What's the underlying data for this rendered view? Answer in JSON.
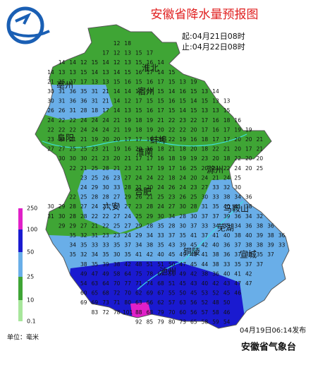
{
  "header": {
    "title": "安徽省降水量预报图",
    "start": "起:04月21日08时",
    "end": "止:04月22日08时"
  },
  "cities": [
    "淮北",
    "亳州",
    "宿州",
    "蚌埠",
    "阜阳",
    "淮南",
    "滁州",
    "合肥",
    "六安",
    "马鞍山",
    "芜湖",
    "铜陵",
    "宣城",
    "池州"
  ],
  "legend": {
    "ticks": [
      "250",
      "100",
      "50",
      "25",
      "10",
      "0.1"
    ],
    "unit": "单位：毫米"
  },
  "footer": {
    "issued": "04月19日06:14发布",
    "agency": "安徽省气象台"
  },
  "grid": {
    "rows": [
      [
        null,
        null,
        null,
        null,
        null,
        null,
        12,
        18
      ],
      [
        null,
        null,
        null,
        null,
        null,
        17,
        12,
        13,
        15,
        17
      ],
      [
        null,
        14,
        14,
        12,
        15,
        14,
        12,
        13,
        15,
        16,
        14
      ],
      [
        14,
        13,
        13,
        15,
        14,
        13,
        14,
        15,
        16,
        17,
        14,
        15
      ],
      [
        21,
        25,
        27,
        17,
        13,
        13,
        15,
        16,
        15,
        16,
        17,
        15,
        13,
        19
      ],
      [
        30,
        31,
        36,
        35,
        31,
        21,
        14,
        14,
        17,
        17,
        15,
        14,
        16,
        15,
        13,
        14
      ],
      [
        30,
        31,
        36,
        36,
        31,
        21,
        14,
        12,
        17,
        15,
        15,
        16,
        15,
        14,
        15,
        13,
        13
      ],
      [
        26,
        26,
        31,
        28,
        18,
        17,
        14,
        13,
        15,
        16,
        17,
        15,
        14,
        15,
        13,
        13,
        15
      ],
      [
        24,
        22,
        22,
        24,
        24,
        24,
        21,
        19,
        18,
        19,
        21,
        22,
        23,
        22,
        17,
        16,
        18,
        16
      ],
      [
        22,
        22,
        22,
        24,
        24,
        24,
        21,
        19,
        18,
        19,
        20,
        22,
        22,
        20,
        17,
        16,
        17,
        19,
        19
      ],
      [
        23,
        22,
        21,
        21,
        19,
        20,
        20,
        17,
        17,
        19,
        20,
        22,
        19,
        16,
        18,
        17,
        17,
        20,
        20,
        21
      ],
      [
        27,
        27,
        25,
        25,
        23,
        21,
        19,
        16,
        20,
        16,
        18,
        21,
        18,
        20,
        18,
        22,
        21,
        20,
        17,
        21
      ],
      [
        null,
        30,
        30,
        30,
        21,
        23,
        20,
        21,
        17,
        17,
        16,
        18,
        19,
        19,
        23,
        20,
        18,
        22,
        20,
        20
      ],
      [
        null,
        null,
        22,
        21,
        25,
        28,
        21,
        23,
        21,
        17,
        19,
        17,
        16,
        25,
        20,
        21,
        22,
        24,
        20,
        25
      ],
      [
        null,
        null,
        null,
        23,
        25,
        26,
        23,
        27,
        24,
        24,
        22,
        18,
        24,
        20,
        24,
        21,
        24,
        25
      ],
      [
        null,
        null,
        null,
        24,
        29,
        30,
        33,
        28,
        21,
        20,
        24,
        26,
        24,
        23,
        27,
        33,
        32,
        30
      ],
      [
        null,
        null,
        22,
        25,
        28,
        28,
        27,
        29,
        26,
        21,
        25,
        23,
        26,
        25,
        30,
        33,
        38,
        34,
        36
      ],
      [
        30,
        29,
        28,
        27,
        24,
        21,
        23,
        27,
        23,
        28,
        24,
        27,
        30,
        28,
        31,
        35,
        40,
        41,
        38
      ],
      [
        31,
        30,
        28,
        28,
        22,
        22,
        27,
        24,
        25,
        29,
        30,
        34,
        28,
        30,
        37,
        37,
        39,
        36,
        34,
        32
      ],
      [
        null,
        29,
        29,
        27,
        21,
        22,
        25,
        27,
        29,
        28,
        35,
        28,
        30,
        37,
        33,
        34,
        35,
        34,
        36,
        38,
        36
      ],
      [
        null,
        null,
        35,
        32,
        31,
        23,
        23,
        24,
        29,
        34,
        33,
        37,
        35,
        41,
        37,
        41,
        40,
        38,
        40,
        39,
        38,
        36
      ],
      [
        null,
        null,
        34,
        35,
        33,
        33,
        35,
        37,
        34,
        38,
        35,
        43,
        39,
        45,
        42,
        40,
        36,
        37,
        38,
        38,
        39,
        33
      ],
      [
        null,
        null,
        35,
        32,
        34,
        35,
        30,
        35,
        41,
        42,
        40,
        45,
        49,
        48,
        41,
        38,
        36,
        37,
        38,
        35,
        37
      ],
      [
        null,
        null,
        null,
        38,
        35,
        39,
        38,
        42,
        48,
        51,
        51,
        50,
        47,
        45,
        44,
        38,
        33,
        35,
        37,
        37
      ],
      [
        null,
        null,
        null,
        49,
        47,
        49,
        58,
        64,
        75,
        78,
        67,
        51,
        49,
        42,
        38,
        36,
        40,
        41,
        42
      ],
      [
        null,
        null,
        null,
        54,
        63,
        64,
        70,
        77,
        71,
        74,
        68,
        51,
        45,
        43,
        40,
        42,
        43,
        47,
        47
      ],
      [
        null,
        null,
        null,
        60,
        65,
        68,
        72,
        70,
        62,
        69,
        67,
        55,
        50,
        45,
        53,
        52,
        45,
        46
      ],
      [
        null,
        null,
        null,
        69,
        69,
        73,
        71,
        80,
        63,
        66,
        62,
        57,
        63,
        56,
        52,
        48,
        50
      ],
      [
        null,
        null,
        null,
        null,
        83,
        72,
        78,
        101,
        88,
        68,
        79,
        70,
        60,
        56,
        57,
        58,
        46
      ],
      [
        null,
        null,
        null,
        null,
        null,
        null,
        null,
        null,
        92,
        85,
        79,
        80,
        73,
        65,
        58,
        59,
        54
      ]
    ]
  }
}
